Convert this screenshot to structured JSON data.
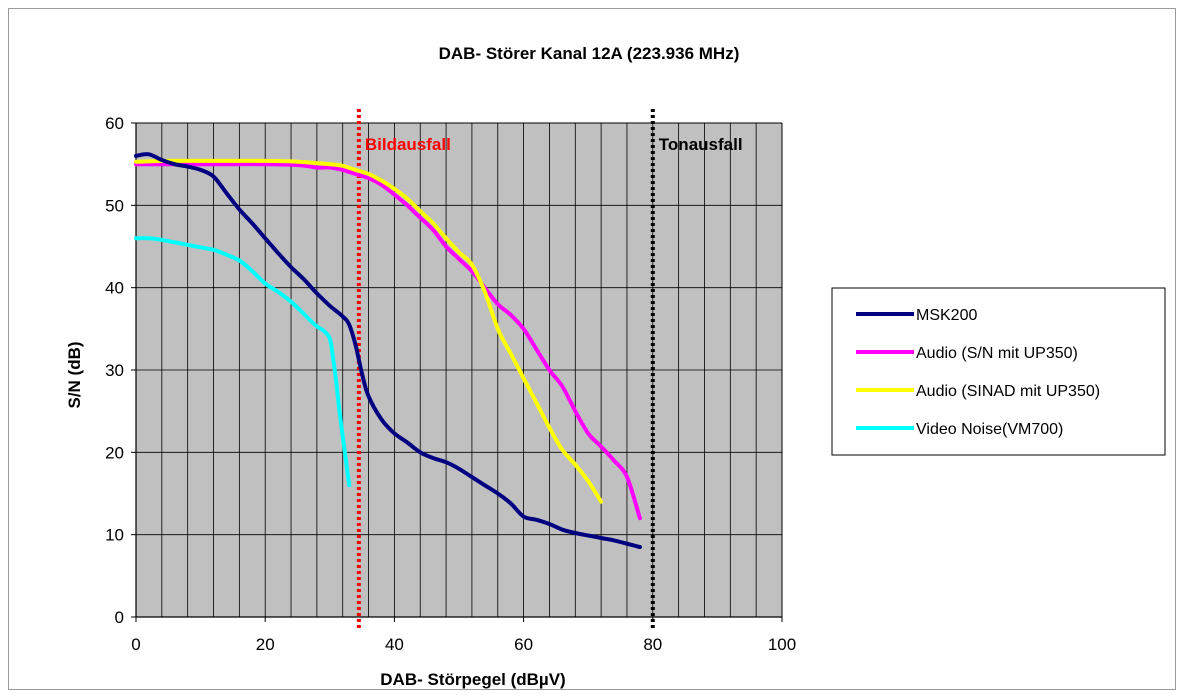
{
  "chart_data": {
    "type": "line",
    "title": "DAB- Störer Kanal 12A (223.936 MHz)",
    "xlabel": "DAB- Störpegel (dBµV)",
    "ylabel": "S/N (dB)",
    "xlim": [
      0,
      100
    ],
    "ylim": [
      0,
      60
    ],
    "x_ticks": [
      0,
      20,
      40,
      60,
      80,
      100
    ],
    "y_ticks": [
      0,
      10,
      20,
      30,
      40,
      50,
      60
    ],
    "grid": true,
    "legend_position": "right",
    "markers": [
      {
        "label": "Bildausfall",
        "x": 34.5,
        "color": "#ff0000"
      },
      {
        "label": "Tonausfall",
        "x": 80,
        "color": "#000000"
      }
    ],
    "series": [
      {
        "name": "MSK200",
        "color": "#000080",
        "x": [
          0,
          2,
          4,
          6,
          8,
          10,
          12,
          14,
          16,
          18,
          20,
          22,
          24,
          26,
          28,
          30,
          32,
          33,
          34,
          35,
          36,
          38,
          40,
          42,
          44,
          46,
          48,
          50,
          52,
          54,
          56,
          58,
          60,
          62,
          64,
          66,
          68,
          70,
          72,
          74,
          76,
          78
        ],
        "y": [
          56,
          56.2,
          55.5,
          55,
          54.7,
          54.3,
          53.5,
          51.5,
          49.5,
          47.8,
          46,
          44.2,
          42.5,
          41,
          39.3,
          37.8,
          36.5,
          35.5,
          33,
          29.5,
          26.8,
          24,
          22.3,
          21.2,
          20,
          19.3,
          18.8,
          18,
          17,
          16,
          15,
          13.8,
          12.2,
          11.8,
          11.3,
          10.6,
          10.2,
          9.9,
          9.6,
          9.3,
          8.9,
          8.5
        ]
      },
      {
        "name": "Audio (S/N mit UP350)",
        "color": "#ff00ff",
        "x": [
          0,
          5,
          10,
          15,
          20,
          25,
          28,
          30,
          32,
          34,
          36,
          38,
          40,
          42,
          44,
          46,
          48,
          50,
          52,
          54,
          56,
          58,
          60,
          62,
          64,
          66,
          68,
          70,
          72,
          74,
          76,
          78
        ],
        "y": [
          55,
          55,
          55,
          55,
          55,
          54.9,
          54.6,
          54.6,
          54.3,
          53.8,
          53.3,
          52.5,
          51.3,
          50,
          48.5,
          47,
          45,
          43.5,
          42,
          40,
          38,
          36.7,
          35,
          32.5,
          30,
          28,
          25,
          22.3,
          20.7,
          19,
          17,
          12
        ]
      },
      {
        "name": "Audio (SINAD mit UP350)",
        "color": "#ffff00",
        "x": [
          0,
          5,
          10,
          15,
          20,
          25,
          30,
          32,
          34,
          36,
          38,
          40,
          42,
          44,
          46,
          48,
          50,
          52,
          54,
          56,
          58,
          60,
          62,
          64,
          66,
          68,
          70,
          72
        ],
        "y": [
          55.3,
          55.4,
          55.4,
          55.4,
          55.4,
          55.3,
          55,
          54.8,
          54.3,
          53.8,
          53,
          52,
          50.8,
          49.3,
          47.8,
          46,
          44.3,
          42.8,
          39.5,
          35,
          32,
          29,
          26,
          23,
          20.3,
          18.5,
          16.5,
          14
        ]
      },
      {
        "name": "Video Noise(VM700)",
        "color": "#00ffff",
        "x": [
          0,
          2,
          4,
          6,
          8,
          10,
          12,
          14,
          16,
          18,
          20,
          22,
          24,
          26,
          27,
          28,
          29,
          30,
          30.5,
          31,
          31.5,
          32,
          32.5,
          33
        ],
        "y": [
          46,
          46,
          45.8,
          45.5,
          45.2,
          44.9,
          44.6,
          44,
          43.3,
          42,
          40.5,
          39.5,
          38.3,
          36.8,
          36,
          35.3,
          34.8,
          33.8,
          31.5,
          28.5,
          25,
          22,
          19,
          16
        ]
      }
    ]
  }
}
